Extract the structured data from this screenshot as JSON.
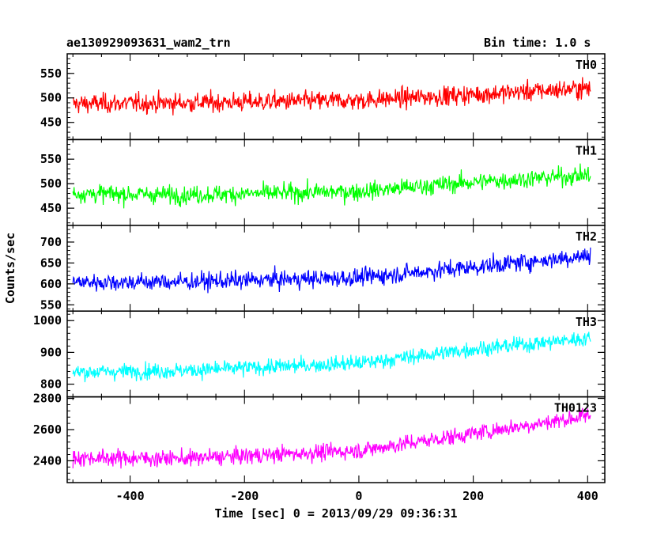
{
  "chart_data": {
    "type": "line",
    "title": "ae130929093631_wam2_trn",
    "subtitle": "Bin time: 1.0 s",
    "xlabel": "Time [sec] 0 = 2013/09/29 09:36:31",
    "ylabel": "Counts/sec",
    "xlim": [
      -510,
      430
    ],
    "x_ticks": [
      -400,
      -200,
      0,
      200,
      400
    ],
    "x_range": [
      -500,
      405
    ],
    "bin_time": 1.0,
    "panels": [
      {
        "name": "TH0",
        "color": "#ff0000",
        "ylim": [
          415,
          590
        ],
        "y_ticks": [
          450,
          500,
          550
        ],
        "trend": [
          [
            -500,
            488
          ],
          [
            -300,
            490
          ],
          [
            0,
            495
          ],
          [
            200,
            507
          ],
          [
            405,
            520
          ]
        ],
        "spread": 28
      },
      {
        "name": "TH1",
        "color": "#00ff00",
        "ylim": [
          415,
          590
        ],
        "y_ticks": [
          450,
          500,
          550
        ],
        "trend": [
          [
            -500,
            480
          ],
          [
            -300,
            477
          ],
          [
            0,
            484
          ],
          [
            200,
            503
          ],
          [
            405,
            518
          ]
        ],
        "spread": 26
      },
      {
        "name": "TH2",
        "color": "#0000ff",
        "ylim": [
          535,
          740
        ],
        "y_ticks": [
          550,
          600,
          650,
          700
        ],
        "trend": [
          [
            -500,
            604
          ],
          [
            -300,
            605
          ],
          [
            0,
            615
          ],
          [
            200,
            640
          ],
          [
            405,
            668
          ]
        ],
        "spread": 30
      },
      {
        "name": "TH3",
        "color": "#00ffff",
        "ylim": [
          760,
          1030
        ],
        "y_ticks": [
          800,
          900,
          1000
        ],
        "trend": [
          [
            -500,
            838
          ],
          [
            -300,
            843
          ],
          [
            0,
            866
          ],
          [
            200,
            910
          ],
          [
            405,
            945
          ]
        ],
        "spread": 35
      },
      {
        "name": "TH0123",
        "color": "#ff00ff",
        "ylim": [
          2260,
          2810
        ],
        "y_ticks": [
          2400,
          2600,
          2800
        ],
        "trend": [
          [
            -500,
            2420
          ],
          [
            -300,
            2415
          ],
          [
            0,
            2465
          ],
          [
            200,
            2575
          ],
          [
            405,
            2690
          ]
        ],
        "spread": 75
      }
    ],
    "grid": false,
    "legend": "none"
  }
}
